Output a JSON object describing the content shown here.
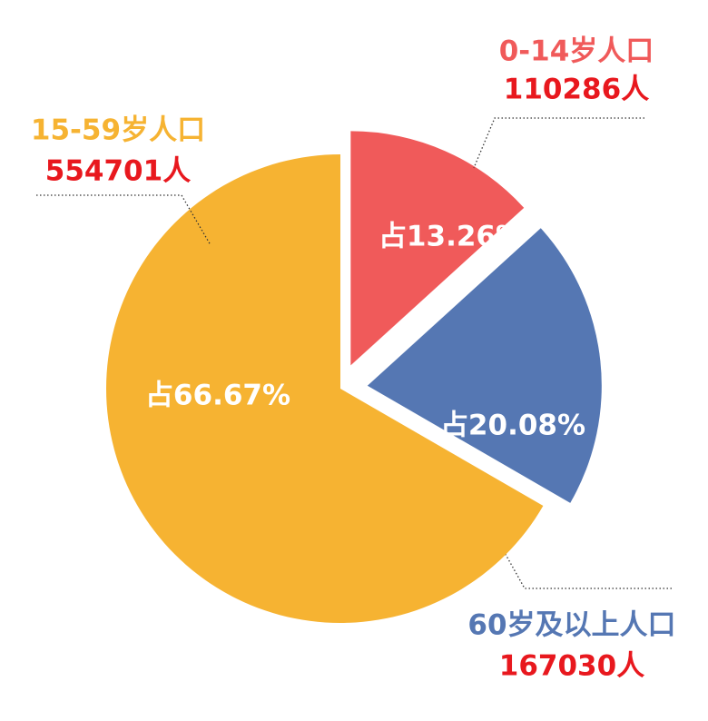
{
  "chart_data": {
    "type": "pie",
    "categories": [
      "0-14岁人口",
      "60岁及以上人口",
      "15-59岁人口"
    ],
    "values": [
      13.26,
      20.08,
      66.67
    ],
    "value_labels": [
      "占13.26%",
      "占20.08%",
      "占66.67%"
    ],
    "counts": [
      110286,
      167030,
      554701
    ],
    "count_labels": [
      "110286人",
      "167030人",
      "554701人"
    ],
    "colors": [
      "#f05a5a",
      "#5577b3",
      "#f6b332"
    ],
    "count_color": "#e8181e"
  }
}
